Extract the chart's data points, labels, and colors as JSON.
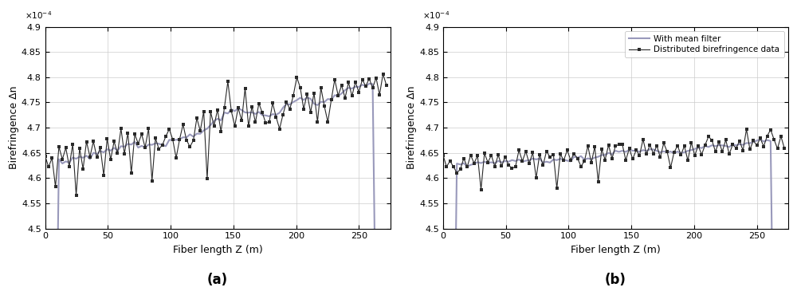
{
  "xlim": [
    0,
    275
  ],
  "ylim": [
    0.00045,
    0.00049
  ],
  "yticks": [
    0.00045,
    0.000455,
    0.00046,
    0.000465,
    0.00047,
    0.000475,
    0.00048,
    0.000485,
    0.00049
  ],
  "ytick_labels": [
    "4.5",
    "4.55",
    "4.6",
    "4.65",
    "4.7",
    "4.75",
    "4.8",
    "4.85",
    "4.9"
  ],
  "xticks": [
    0,
    50,
    100,
    150,
    200,
    250
  ],
  "xlabel": "Fiber length Z (m)",
  "ylabel": "Birefringence Δn",
  "exp_label": "×10⁻⁴",
  "label_a": "(a)",
  "label_b": "(b)",
  "legend_line1": "Distributed birefringence data",
  "legend_line2": "With mean filter",
  "line_color": "#2a2a2a",
  "filter_color": "#9999bb",
  "background_color": "#ffffff",
  "grid_color": "#cccccc",
  "figsize": [
    10.0,
    3.8
  ],
  "dpi": 100
}
